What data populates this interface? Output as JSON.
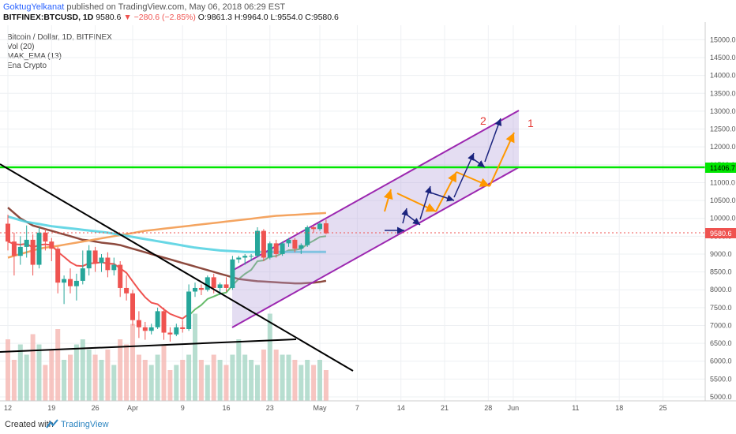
{
  "header": {
    "author": "GoktugYelkanat",
    "published": "published on TradingView.com, May 06, 2018 06:29 EST",
    "symbol": "BITFINEX:BTCUSD, 1D",
    "last": "9580.6",
    "change": "−280.6 (−2.85%)",
    "ohlc": "O:9861.3 H:9964.0 L:9554.0 C:9580.6"
  },
  "legend": {
    "title": "Bitcoin / Dollar, 1D, BITFINEX",
    "vol": "Vol (20)",
    "ema": "MAK_EMA (13)",
    "ena": "Ena Crypto"
  },
  "footer": {
    "created": "Created with",
    "brand": "TradingView"
  },
  "colors": {
    "up": "#26a69a",
    "down": "#ef5350",
    "ema_fast": "#66bb6a",
    "ema_red": "#ef5350",
    "ema_brown": "#8d4a3e",
    "ema_orange": "#f4a460",
    "ema_cyan": "#4dd0e1",
    "resistance": "#00e600",
    "channel": "#9c27b0",
    "trendline": "#000000",
    "arrow_orange": "#ff9800",
    "arrow_blue": "#1a237e"
  },
  "chart_data": {
    "type": "candlestick",
    "ylim": [
      4900,
      15300
    ],
    "price_ticks": [
      5000,
      5500,
      6000,
      6500,
      7000,
      7500,
      8000,
      8500,
      9000,
      9500,
      10000,
      10500,
      11000,
      11500,
      12000,
      12500,
      13000,
      13500,
      14000,
      14500,
      15000
    ],
    "price_tick_labels": [
      "5000.0",
      "5500.0",
      "6000.0",
      "6500.0",
      "7000.0",
      "7500.0",
      "8000.0",
      "8500.0",
      "9000.0",
      "9500.0",
      "10000.0",
      "10500.0",
      "11000.0",
      "11500.0",
      "12000.0",
      "12500.0",
      "13000.0",
      "13500.0",
      "14000.0",
      "14500.0",
      "15000.0"
    ],
    "date_ticks": [
      {
        "label": "12",
        "day": 0
      },
      {
        "label": "19",
        "day": 7
      },
      {
        "label": "26",
        "day": 14
      },
      {
        "label": "Apr",
        "day": 20
      },
      {
        "label": "9",
        "day": 28
      },
      {
        "label": "16",
        "day": 35
      },
      {
        "label": "23",
        "day": 42
      },
      {
        "label": "May",
        "day": 50
      },
      {
        "label": "7",
        "day": 56
      },
      {
        "label": "14",
        "day": 63
      },
      {
        "label": "21",
        "day": 70
      },
      {
        "label": "28",
        "day": 77
      },
      {
        "label": "Jun",
        "day": 81
      },
      {
        "label": "11",
        "day": 91
      },
      {
        "label": "18",
        "day": 98
      },
      {
        "label": "25",
        "day": 105
      }
    ],
    "resistance_level": "11406.7",
    "last_price": "9580.6",
    "annotations": [
      "2",
      "1"
    ],
    "candles": [
      {
        "o": 9850,
        "h": 10100,
        "l": 9100,
        "c": 9350
      },
      {
        "o": 9350,
        "h": 9600,
        "l": 8400,
        "c": 8950
      },
      {
        "o": 8950,
        "h": 9500,
        "l": 8700,
        "c": 9200
      },
      {
        "o": 9200,
        "h": 9800,
        "l": 8900,
        "c": 9400
      },
      {
        "o": 9400,
        "h": 9550,
        "l": 8400,
        "c": 8700
      },
      {
        "o": 8700,
        "h": 9750,
        "l": 8600,
        "c": 9600
      },
      {
        "o": 9600,
        "h": 9700,
        "l": 9100,
        "c": 9350
      },
      {
        "o": 9350,
        "h": 9450,
        "l": 8800,
        "c": 9150
      },
      {
        "o": 9150,
        "h": 9200,
        "l": 7900,
        "c": 8200
      },
      {
        "o": 8200,
        "h": 8400,
        "l": 7600,
        "c": 8300
      },
      {
        "o": 8300,
        "h": 8600,
        "l": 7900,
        "c": 8100
      },
      {
        "o": 8100,
        "h": 8450,
        "l": 7700,
        "c": 8250
      },
      {
        "o": 8250,
        "h": 9100,
        "l": 8150,
        "c": 8600
      },
      {
        "o": 8600,
        "h": 9250,
        "l": 8400,
        "c": 9100
      },
      {
        "o": 9100,
        "h": 9200,
        "l": 8500,
        "c": 8750
      },
      {
        "o": 8750,
        "h": 9000,
        "l": 8500,
        "c": 8900
      },
      {
        "o": 8900,
        "h": 9050,
        "l": 8350,
        "c": 8550
      },
      {
        "o": 8550,
        "h": 8900,
        "l": 8400,
        "c": 8700
      },
      {
        "o": 8700,
        "h": 8800,
        "l": 7800,
        "c": 8050
      },
      {
        "o": 8050,
        "h": 8400,
        "l": 7700,
        "c": 7900
      },
      {
        "o": 7900,
        "h": 8000,
        "l": 7000,
        "c": 7150
      },
      {
        "o": 7150,
        "h": 7400,
        "l": 6650,
        "c": 6950
      },
      {
        "o": 6950,
        "h": 7100,
        "l": 6600,
        "c": 6850
      },
      {
        "o": 6850,
        "h": 7050,
        "l": 6750,
        "c": 6950
      },
      {
        "o": 6950,
        "h": 7500,
        "l": 6900,
        "c": 7400
      },
      {
        "o": 7400,
        "h": 7500,
        "l": 6600,
        "c": 6800
      },
      {
        "o": 6800,
        "h": 6950,
        "l": 6550,
        "c": 6750
      },
      {
        "o": 6750,
        "h": 7050,
        "l": 6700,
        "c": 6950
      },
      {
        "o": 6950,
        "h": 7150,
        "l": 6800,
        "c": 6900
      },
      {
        "o": 6900,
        "h": 8150,
        "l": 6850,
        "c": 7950
      },
      {
        "o": 7950,
        "h": 8200,
        "l": 7800,
        "c": 8050
      },
      {
        "o": 8050,
        "h": 8150,
        "l": 7850,
        "c": 8000
      },
      {
        "o": 8000,
        "h": 8400,
        "l": 7950,
        "c": 8350
      },
      {
        "o": 8350,
        "h": 8450,
        "l": 7900,
        "c": 8050
      },
      {
        "o": 8050,
        "h": 8200,
        "l": 7850,
        "c": 8150
      },
      {
        "o": 8150,
        "h": 8350,
        "l": 7950,
        "c": 8050
      },
      {
        "o": 8050,
        "h": 8950,
        "l": 8000,
        "c": 8850
      },
      {
        "o": 8850,
        "h": 8950,
        "l": 8750,
        "c": 8900
      },
      {
        "o": 8900,
        "h": 9000,
        "l": 8700,
        "c": 8950
      },
      {
        "o": 8950,
        "h": 9000,
        "l": 8800,
        "c": 8950
      },
      {
        "o": 8950,
        "h": 9750,
        "l": 8900,
        "c": 9650
      },
      {
        "o": 9650,
        "h": 9700,
        "l": 8800,
        "c": 8900
      },
      {
        "o": 8900,
        "h": 9350,
        "l": 8850,
        "c": 9300
      },
      {
        "o": 9300,
        "h": 9400,
        "l": 8900,
        "c": 9000
      },
      {
        "o": 9000,
        "h": 9350,
        "l": 8950,
        "c": 9300
      },
      {
        "o": 9300,
        "h": 9450,
        "l": 9200,
        "c": 9400
      },
      {
        "o": 9400,
        "h": 9450,
        "l": 9050,
        "c": 9150
      },
      {
        "o": 9150,
        "h": 9300,
        "l": 9000,
        "c": 9250
      },
      {
        "o": 9250,
        "h": 9800,
        "l": 9200,
        "c": 9750
      },
      {
        "o": 9750,
        "h": 9800,
        "l": 9600,
        "c": 9700
      },
      {
        "o": 9700,
        "h": 9900,
        "l": 9650,
        "c": 9850
      },
      {
        "o": 9861.3,
        "h": 9964,
        "l": 9554,
        "c": 9580.6
      }
    ],
    "volume": [
      60,
      40,
      55,
      45,
      65,
      55,
      35,
      50,
      70,
      40,
      45,
      55,
      60,
      50,
      45,
      40,
      50,
      35,
      60,
      55,
      75,
      45,
      40,
      35,
      45,
      55,
      30,
      35,
      40,
      45,
      85,
      40,
      35,
      45,
      40,
      35,
      45,
      60,
      45,
      40,
      35,
      50,
      85,
      50,
      45,
      45,
      40,
      35,
      40,
      35,
      40,
      30
    ]
  }
}
